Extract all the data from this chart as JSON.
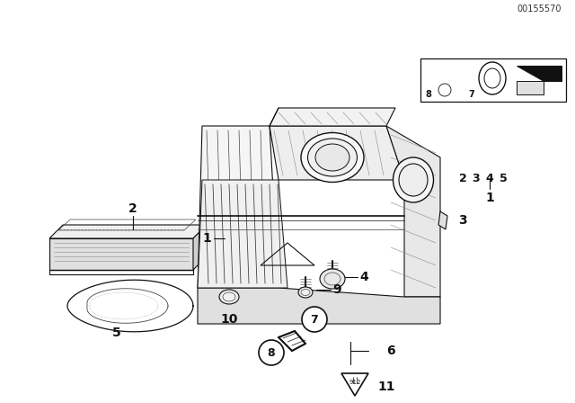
{
  "bg_color": "#ffffff",
  "part_number": "00155570",
  "dark": "#111111",
  "mid": "#444444",
  "light": "#888888"
}
